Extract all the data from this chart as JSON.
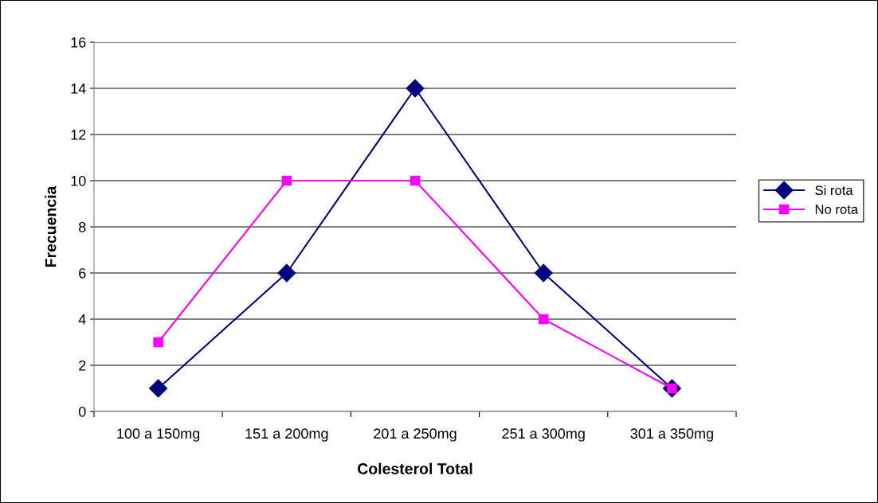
{
  "chart_data": {
    "type": "line",
    "xlabel": "Colesterol Total",
    "ylabel": "Frecuencia",
    "categories": [
      "100 a 150mg",
      "151 a 200mg",
      "201 a 250mg",
      "251 a 300mg",
      "301 a 350mg"
    ],
    "series": [
      {
        "name": "Si rota",
        "color": "#000080",
        "marker": "diamond",
        "values": [
          1,
          6,
          14,
          6,
          1
        ]
      },
      {
        "name": "No rota",
        "color": "#ff00ff",
        "marker": "square",
        "values": [
          3,
          10,
          10,
          4,
          1
        ]
      }
    ],
    "ylim": [
      0,
      16
    ],
    "yticks": [
      0,
      2,
      4,
      6,
      8,
      10,
      12,
      14,
      16
    ],
    "grid": "y",
    "legend": "right",
    "line_style": "solid"
  }
}
